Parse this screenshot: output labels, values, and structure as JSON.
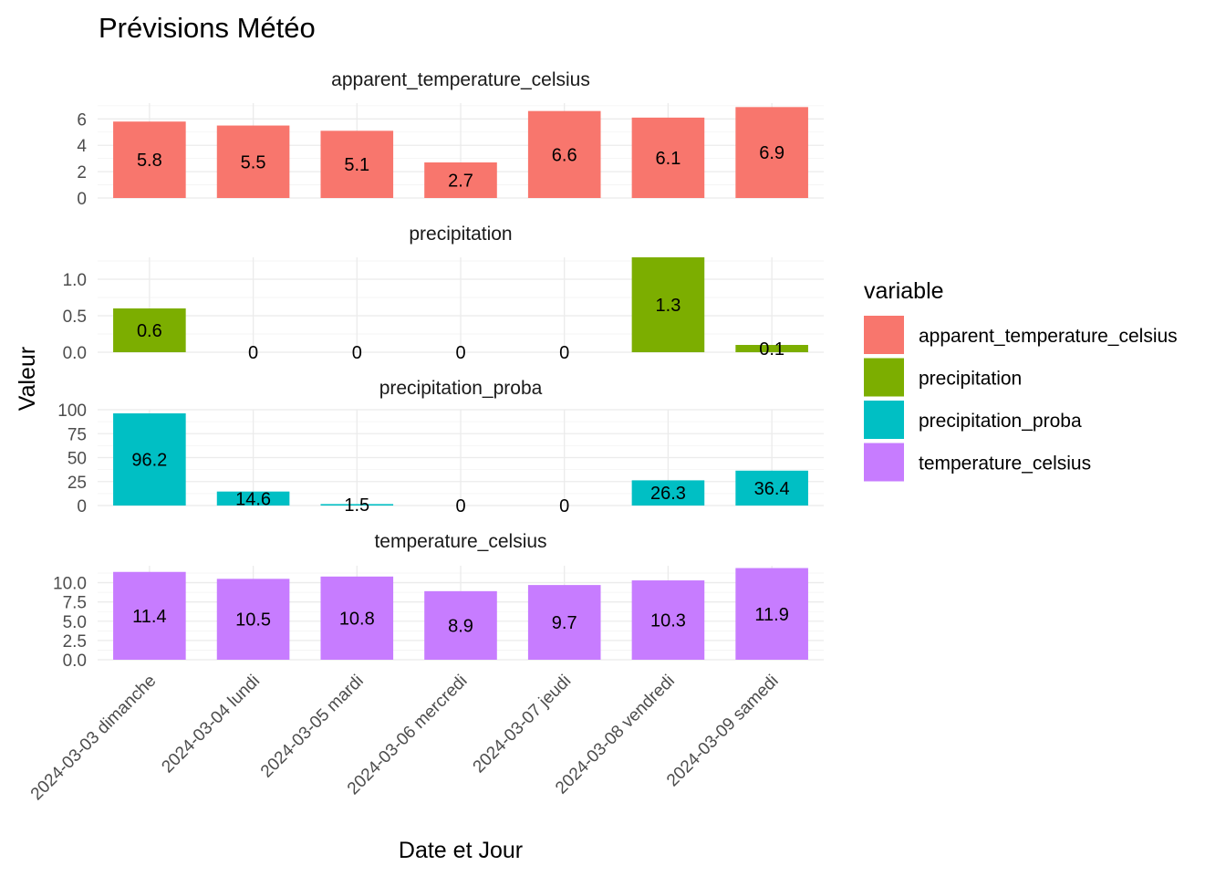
{
  "chart_data": {
    "type": "bar",
    "title": "Prévisions Météo",
    "xlabel": "Date et Jour",
    "ylabel": "Valeur",
    "categories": [
      "2024-03-03 dimanche",
      "2024-03-04 lundi",
      "2024-03-05 mardi",
      "2024-03-06 mercredi",
      "2024-03-07 jeudi",
      "2024-03-08 vendredi",
      "2024-03-09 samedi"
    ],
    "legend": {
      "title": "variable",
      "position": "right"
    },
    "grid": true,
    "facets": [
      {
        "name": "apparent_temperature_celsius",
        "color": "#F8766D",
        "values": [
          5.8,
          5.5,
          5.1,
          2.7,
          6.6,
          6.1,
          6.9
        ],
        "labels": [
          "5.8",
          "5.5",
          "5.1",
          "2.7",
          "6.6",
          "6.1",
          "6.9"
        ],
        "ylim": [
          0,
          7.2
        ],
        "ticks": [
          0,
          2,
          4,
          6
        ],
        "tick_labels": [
          "0",
          "2",
          "4",
          "6"
        ]
      },
      {
        "name": "precipitation",
        "color": "#7CAE00",
        "values": [
          0.6,
          0,
          0,
          0,
          0,
          1.3,
          0.1
        ],
        "labels": [
          "0.6",
          "0",
          "0",
          "0",
          "0",
          "1.3",
          "0.1"
        ],
        "ylim": [
          0,
          1.3
        ],
        "ticks": [
          0,
          0.5,
          1.0
        ],
        "tick_labels": [
          "0.0",
          "0.5",
          "1.0"
        ]
      },
      {
        "name": "precipitation_proba",
        "color": "#00BFC4",
        "values": [
          96.2,
          14.6,
          1.5,
          0,
          0,
          26.3,
          36.4
        ],
        "labels": [
          "96.2",
          "14.6",
          "1.5",
          "0",
          "0",
          "26.3",
          "36.4"
        ],
        "ylim": [
          0,
          100
        ],
        "ticks": [
          0,
          25,
          50,
          75,
          100
        ],
        "tick_labels": [
          "0",
          "25",
          "50",
          "75",
          "100"
        ]
      },
      {
        "name": "temperature_celsius",
        "color": "#C77CFF",
        "values": [
          11.4,
          10.5,
          10.8,
          8.9,
          9.7,
          10.3,
          11.9
        ],
        "labels": [
          "11.4",
          "10.5",
          "10.8",
          "8.9",
          "9.7",
          "10.3",
          "11.9"
        ],
        "ylim": [
          0,
          12.2
        ],
        "ticks": [
          0,
          2.5,
          5,
          7.5,
          10
        ],
        "tick_labels": [
          "0.0",
          "2.5",
          "5.0",
          "7.5",
          "10.0"
        ]
      }
    ]
  }
}
